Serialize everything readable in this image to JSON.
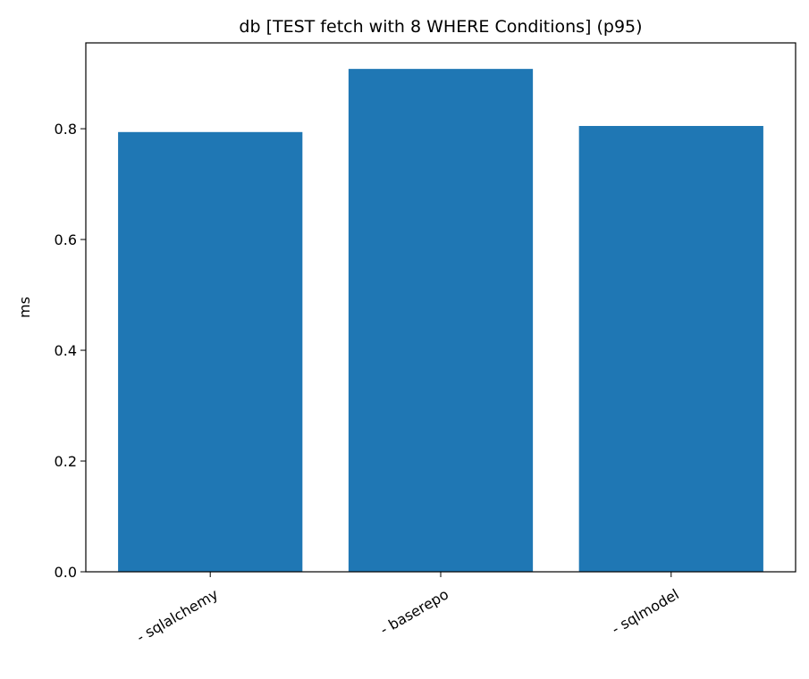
{
  "chart_data": {
    "type": "bar",
    "title": "db [TEST fetch with 8 WHERE Conditions] (p95)",
    "ylabel": "ms",
    "categories": [
      "- sqlalchemy",
      "- baserepo",
      "- sqlmodel"
    ],
    "values": [
      0.794,
      0.908,
      0.805
    ],
    "color": "#1f77b4",
    "ylim": [
      0,
      0.955
    ],
    "yticks": [
      {
        "value": 0,
        "label": "0.0"
      },
      0.2,
      0.4,
      0.6,
      0.8
    ]
  }
}
